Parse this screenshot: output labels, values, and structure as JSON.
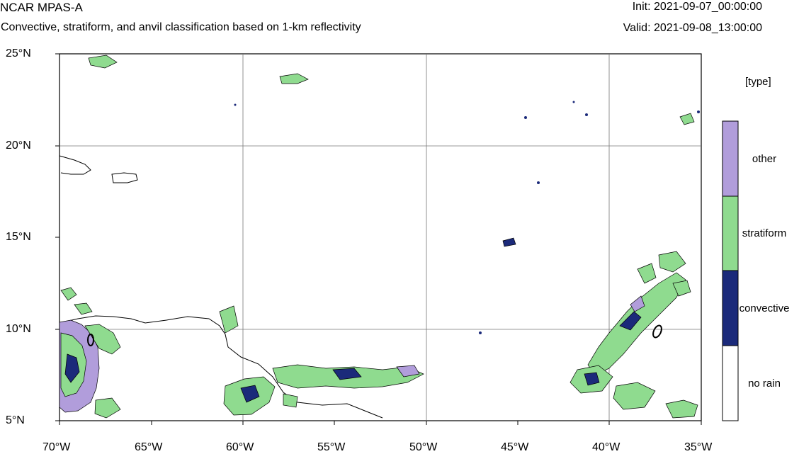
{
  "header": {
    "title": "NCAR MPAS-A",
    "subtitle": "Convective, stratiform, and anvil classification based on 1-km reflectivity",
    "init": "Init: 2021-09-07_00:00:00",
    "valid": "Valid: 2021-09-08_13:00:00"
  },
  "map": {
    "lon_range": [
      -70,
      -35
    ],
    "lat_range": [
      5,
      25
    ],
    "lat_labels": [
      "25°N",
      "20°N",
      "15°N",
      "10°N",
      "5°N"
    ],
    "lon_labels": [
      "70°W",
      "65°W",
      "60°W",
      "55°W",
      "50°W",
      "45°W",
      "40°W",
      "35°W"
    ],
    "grid": true
  },
  "legend": {
    "title": "[type]",
    "items": [
      {
        "label": "other",
        "color": "#b19ddb"
      },
      {
        "label": "stratiform",
        "color": "#8fdb8f"
      },
      {
        "label": "convective",
        "color": "#1b2a7a"
      },
      {
        "label": "no rain",
        "color": "#ffffff"
      }
    ]
  }
}
